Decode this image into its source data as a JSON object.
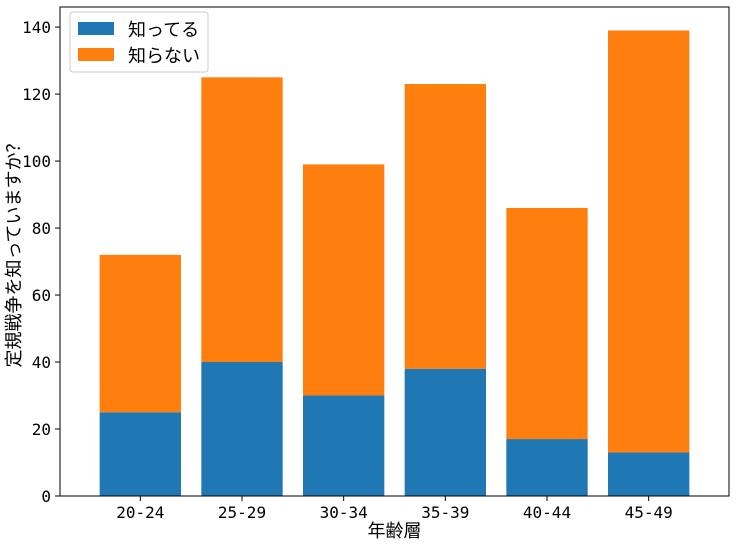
{
  "chart_data": {
    "type": "bar",
    "stacked": true,
    "categories": [
      "20-24",
      "25-29",
      "30-34",
      "35-39",
      "40-44",
      "45-49"
    ],
    "series": [
      {
        "name": "知ってる",
        "values": [
          25,
          40,
          30,
          38,
          17,
          13
        ],
        "color": "#1f77b4"
      },
      {
        "name": "知らない",
        "values": [
          47,
          85,
          69,
          85,
          69,
          126
        ],
        "color": "#ff7f0e"
      }
    ],
    "title": "",
    "xlabel": "年齢層",
    "ylabel": "定規戦争を知っていますか？",
    "ylim": [
      0,
      146
    ],
    "yticks": [
      0,
      20,
      40,
      60,
      80,
      100,
      120,
      140
    ],
    "grid": false,
    "legend_position": "top-left"
  }
}
